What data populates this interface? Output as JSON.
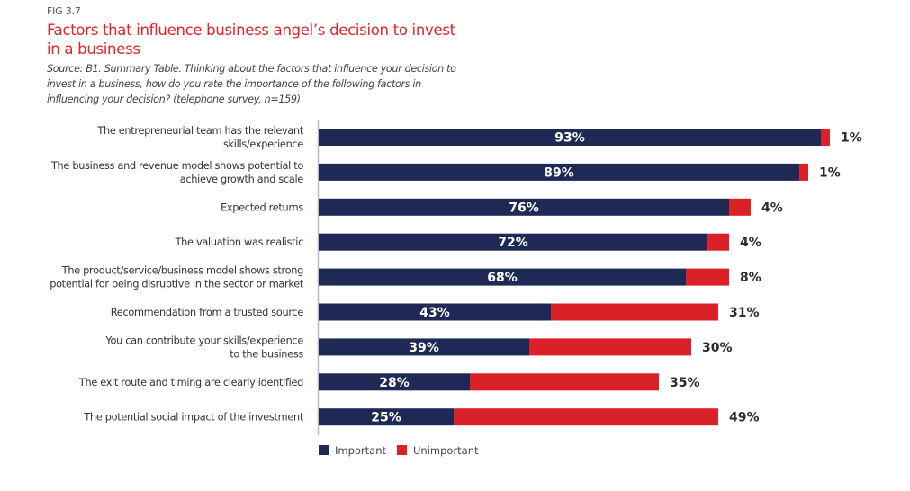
{
  "figure": {
    "fig_label": "FIG 3.7",
    "title": "Factors that influence business angel’s decision to invest in a business",
    "subtitle": "Source: B1. Summary Table. Thinking about the factors that influence your decision to invest in a business, how do you rate the importance of the following factors in influencing your decision? (telephone survey, n=159)"
  },
  "colors": {
    "important": "#1e2a55",
    "unimportant": "#db2128",
    "title": "#e2232a"
  },
  "chart_data": {
    "type": "bar",
    "orientation": "horizontal",
    "stacked": true,
    "title": "Factors that influence business angel’s decision to invest in a business",
    "xlabel": "",
    "ylabel": "",
    "xlim": [
      0,
      100
    ],
    "grid": false,
    "legend_position": "bottom-left",
    "value_suffix": "%",
    "categories": [
      [
        "The entrepreneurial team has the relevant",
        "skills/experience"
      ],
      [
        "The business and revenue model shows potential to",
        "achieve growth and scale"
      ],
      [
        "Expected returns"
      ],
      [
        "The valuation was realistic"
      ],
      [
        "The product/service/business model shows strong",
        "potential for being disruptive in the sector or market"
      ],
      [
        "Recommendation from a trusted source"
      ],
      [
        "You can contribute your skills/experience",
        "to the business"
      ],
      [
        "The exit route and timing are clearly identified"
      ],
      [
        "The potential social impact of the investment"
      ]
    ],
    "series": [
      {
        "name": "Important",
        "values": [
          93,
          89,
          76,
          72,
          68,
          43,
          39,
          28,
          25
        ]
      },
      {
        "name": "Unimportant",
        "values": [
          1,
          1,
          4,
          4,
          8,
          31,
          30,
          35,
          49
        ]
      }
    ]
  }
}
